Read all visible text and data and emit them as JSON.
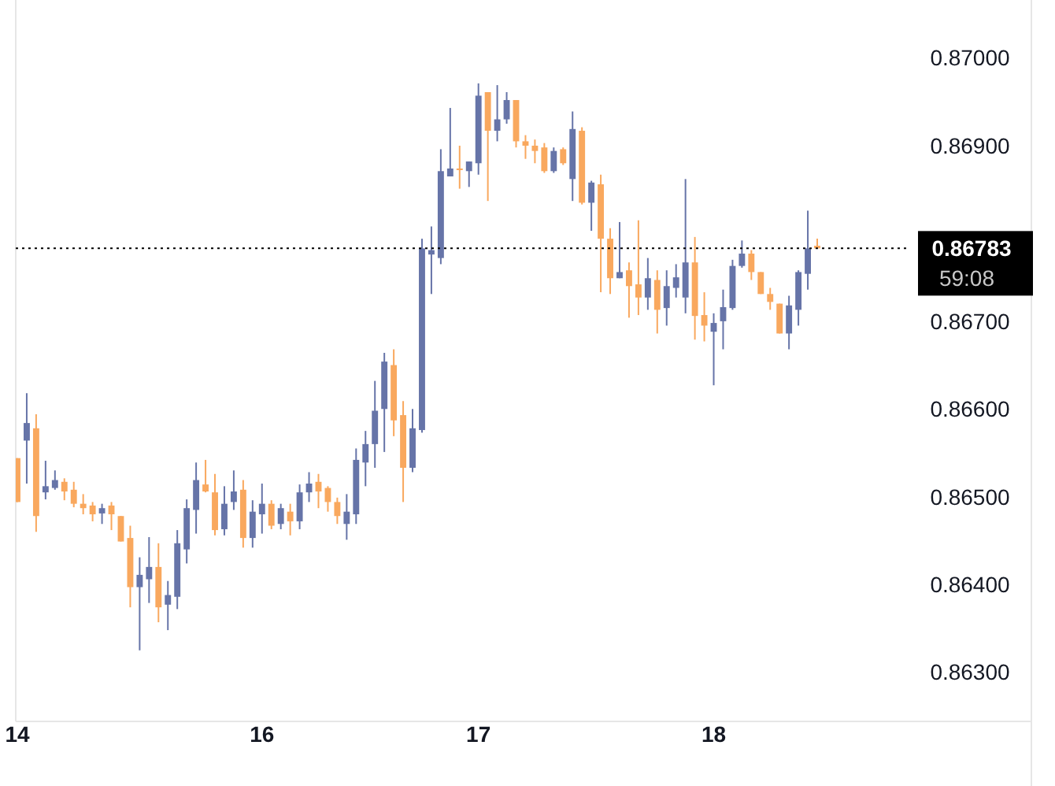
{
  "chart_data": {
    "type": "candlestick",
    "categories": [
      "14",
      null,
      null,
      null,
      null,
      null,
      null,
      null,
      null,
      null,
      null,
      null,
      null,
      null,
      null,
      null,
      null,
      null,
      null,
      null,
      null,
      null,
      null,
      null,
      null,
      null,
      "16",
      null,
      null,
      null,
      null,
      null,
      null,
      null,
      null,
      null,
      null,
      null,
      null,
      null,
      null,
      null,
      null,
      null,
      null,
      null,
      null,
      null,
      null,
      "17",
      null,
      null,
      null,
      null,
      null,
      null,
      null,
      null,
      null,
      null,
      null,
      null,
      null,
      null,
      null,
      null,
      null,
      null,
      null,
      null,
      null,
      null,
      null,
      null,
      "18",
      null,
      null,
      null,
      null,
      null,
      null,
      null,
      null,
      null,
      null,
      null
    ],
    "ohlc": [
      [
        0.86544,
        0.86544,
        0.86494,
        0.86494
      ],
      [
        0.86564,
        0.86618,
        0.86515,
        0.86584
      ],
      [
        0.86578,
        0.86594,
        0.8646,
        0.86478
      ],
      [
        0.86505,
        0.86541,
        0.86497,
        0.86512
      ],
      [
        0.8651,
        0.8653,
        0.86508,
        0.86519
      ],
      [
        0.86517,
        0.86521,
        0.86496,
        0.86506
      ],
      [
        0.86508,
        0.86517,
        0.86488,
        0.86492
      ],
      [
        0.86492,
        0.86503,
        0.8648,
        0.86487
      ],
      [
        0.8649,
        0.86494,
        0.86472,
        0.8648
      ],
      [
        0.86481,
        0.86492,
        0.86469,
        0.86487
      ],
      [
        0.8649,
        0.86494,
        0.86462,
        0.8648
      ],
      [
        0.86478,
        0.86478,
        0.86449,
        0.86449
      ],
      [
        0.86453,
        0.86467,
        0.86374,
        0.86397
      ],
      [
        0.86397,
        0.86431,
        0.86325,
        0.86411
      ],
      [
        0.86406,
        0.86454,
        0.86379,
        0.8642
      ],
      [
        0.8642,
        0.86447,
        0.86357,
        0.86374
      ],
      [
        0.86377,
        0.86404,
        0.86348,
        0.86388
      ],
      [
        0.86386,
        0.86462,
        0.86372,
        0.86447
      ],
      [
        0.8644,
        0.86497,
        0.86424,
        0.86487
      ],
      [
        0.86485,
        0.86539,
        0.86458,
        0.86519
      ],
      [
        0.86514,
        0.86542,
        0.86505,
        0.86506
      ],
      [
        0.86505,
        0.86526,
        0.86456,
        0.86462
      ],
      [
        0.86463,
        0.86512,
        0.86456,
        0.86492
      ],
      [
        0.86494,
        0.8653,
        0.86485,
        0.86506
      ],
      [
        0.86508,
        0.86519,
        0.86442,
        0.86453
      ],
      [
        0.86453,
        0.86496,
        0.86442,
        0.86483
      ],
      [
        0.8648,
        0.86515,
        0.86458,
        0.86492
      ],
      [
        0.86492,
        0.86496,
        0.86463,
        0.86467
      ],
      [
        0.86469,
        0.86492,
        0.86463,
        0.86487
      ],
      [
        0.86483,
        0.86492,
        0.86456,
        0.86472
      ],
      [
        0.86472,
        0.86514,
        0.86463,
        0.86505
      ],
      [
        0.86505,
        0.86528,
        0.86494,
        0.86515
      ],
      [
        0.86517,
        0.86526,
        0.86487,
        0.86506
      ],
      [
        0.8651,
        0.86512,
        0.86483,
        0.86494
      ],
      [
        0.86494,
        0.86499,
        0.86469,
        0.86478
      ],
      [
        0.86469,
        0.86503,
        0.86451,
        0.86483
      ],
      [
        0.8648,
        0.86555,
        0.86469,
        0.86542
      ],
      [
        0.86539,
        0.86575,
        0.86512,
        0.8656
      ],
      [
        0.8656,
        0.86632,
        0.86533,
        0.86598
      ],
      [
        0.866,
        0.86664,
        0.86551,
        0.86654
      ],
      [
        0.8665,
        0.86668,
        0.86569,
        0.86587
      ],
      [
        0.86593,
        0.86609,
        0.86494,
        0.86533
      ],
      [
        0.86533,
        0.866,
        0.86528,
        0.86578
      ],
      [
        0.86576,
        0.86794,
        0.86573,
        0.86783
      ],
      [
        0.86776,
        0.86808,
        0.86731,
        0.86781
      ],
      [
        0.86772,
        0.86896,
        0.86765,
        0.86871
      ],
      [
        0.86865,
        0.86943,
        0.86865,
        0.86874
      ],
      [
        0.86874,
        0.869,
        0.86851,
        0.86873
      ],
      [
        0.86871,
        0.86882,
        0.86853,
        0.86882
      ],
      [
        0.8688,
        0.86971,
        0.86867,
        0.86957
      ],
      [
        0.86961,
        0.86961,
        0.86837,
        0.86917
      ],
      [
        0.86917,
        0.86969,
        0.86905,
        0.8693
      ],
      [
        0.8693,
        0.86961,
        0.86925,
        0.86952
      ],
      [
        0.86952,
        0.86952,
        0.86898,
        0.86905
      ],
      [
        0.86905,
        0.86912,
        0.86885,
        0.869
      ],
      [
        0.869,
        0.86907,
        0.8688,
        0.86894
      ],
      [
        0.86898,
        0.86903,
        0.86869,
        0.86871
      ],
      [
        0.86871,
        0.86898,
        0.86869,
        0.86894
      ],
      [
        0.86896,
        0.86898,
        0.86878,
        0.8688
      ],
      [
        0.86862,
        0.86939,
        0.86837,
        0.86919
      ],
      [
        0.86917,
        0.86921,
        0.86833,
        0.86835
      ],
      [
        0.86835,
        0.8686,
        0.86803,
        0.86858
      ],
      [
        0.86856,
        0.86867,
        0.86733,
        0.86794
      ],
      [
        0.86794,
        0.86806,
        0.86731,
        0.86749
      ],
      [
        0.86749,
        0.86813,
        0.86749,
        0.86756
      ],
      [
        0.86758,
        0.86767,
        0.86704,
        0.8674
      ],
      [
        0.86742,
        0.86815,
        0.86707,
        0.86727
      ],
      [
        0.86727,
        0.86772,
        0.86713,
        0.86749
      ],
      [
        0.86747,
        0.86758,
        0.86686,
        0.86713
      ],
      [
        0.86715,
        0.86758,
        0.86695,
        0.8674
      ],
      [
        0.86738,
        0.86765,
        0.86727,
        0.8675
      ],
      [
        0.86727,
        0.86862,
        0.86709,
        0.86767
      ],
      [
        0.86767,
        0.86796,
        0.86679,
        0.86706
      ],
      [
        0.86707,
        0.86733,
        0.86677,
        0.86695
      ],
      [
        0.86688,
        0.86709,
        0.86627,
        0.86698
      ],
      [
        0.867,
        0.86736,
        0.86668,
        0.86716
      ],
      [
        0.86715,
        0.8677,
        0.86713,
        0.86763
      ],
      [
        0.86763,
        0.86792,
        0.86761,
        0.86777
      ],
      [
        0.86777,
        0.86781,
        0.86747,
        0.86756
      ],
      [
        0.86756,
        0.86756,
        0.86731,
        0.86731
      ],
      [
        0.86731,
        0.86738,
        0.86713,
        0.86722
      ],
      [
        0.8672,
        0.8672,
        0.86686,
        0.86686
      ],
      [
        0.86686,
        0.86729,
        0.86668,
        0.86718
      ],
      [
        0.86713,
        0.86758,
        0.86695,
        0.86756
      ],
      [
        0.86754,
        0.86826,
        0.86736,
        0.86783
      ],
      [
        0.86786,
        0.86794,
        0.86783,
        0.86783
      ]
    ],
    "colors": [
      "#f9a85e",
      "#6674a8",
      "#f9a85e",
      "#6674a8",
      "#6674a8",
      "#f9a85e",
      "#f9a85e",
      "#f9a85e",
      "#f9a85e",
      "#6674a8",
      "#f9a85e",
      "#f9a85e",
      "#f9a85e",
      "#6674a8",
      "#6674a8",
      "#f9a85e",
      "#6674a8",
      "#6674a8",
      "#6674a8",
      "#6674a8",
      "#f9a85e",
      "#f9a85e",
      "#6674a8",
      "#6674a8",
      "#f9a85e",
      "#6674a8",
      "#6674a8",
      "#f9a85e",
      "#6674a8",
      "#f9a85e",
      "#6674a8",
      "#6674a8",
      "#f9a85e",
      "#f9a85e",
      "#f9a85e",
      "#6674a8",
      "#6674a8",
      "#6674a8",
      "#6674a8",
      "#6674a8",
      "#f9a85e",
      "#f9a85e",
      "#6674a8",
      "#6674a8",
      "#6674a8",
      "#6674a8",
      "#6674a8",
      "#f9a85e",
      "#6674a8",
      "#6674a8",
      "#f9a85e",
      "#6674a8",
      "#6674a8",
      "#f9a85e",
      "#f9a85e",
      "#f9a85e",
      "#f9a85e",
      "#6674a8",
      "#f9a85e",
      "#6674a8",
      "#f9a85e",
      "#6674a8",
      "#f9a85e",
      "#f9a85e",
      "#6674a8",
      "#f9a85e",
      "#f9a85e",
      "#6674a8",
      "#f9a85e",
      "#6674a8",
      "#6674a8",
      "#6674a8",
      "#f9a85e",
      "#f9a85e",
      "#6674a8",
      "#6674a8",
      "#6674a8",
      "#6674a8",
      "#f9a85e",
      "#f9a85e",
      "#f9a85e",
      "#f9a85e",
      "#6674a8",
      "#6674a8",
      "#6674a8",
      "#f9a85e"
    ],
    "ylim": [
      0.86244,
      0.87066
    ],
    "yticks": [
      {
        "value": 0.863,
        "label": "0.86300"
      },
      {
        "value": 0.864,
        "label": "0.86400"
      },
      {
        "value": 0.865,
        "label": "0.86500"
      },
      {
        "value": 0.866,
        "label": "0.86600"
      },
      {
        "value": 0.867,
        "label": "0.86700"
      },
      {
        "value": 0.869,
        "label": "0.86900"
      },
      {
        "value": 0.87,
        "label": "0.87000"
      }
    ],
    "ref_lines": [
      {
        "axis": "y",
        "value": 0.86783,
        "label": "0.86783",
        "color": "#000000",
        "line_style": "dotted"
      }
    ],
    "annotations": [
      "59:08"
    ]
  }
}
